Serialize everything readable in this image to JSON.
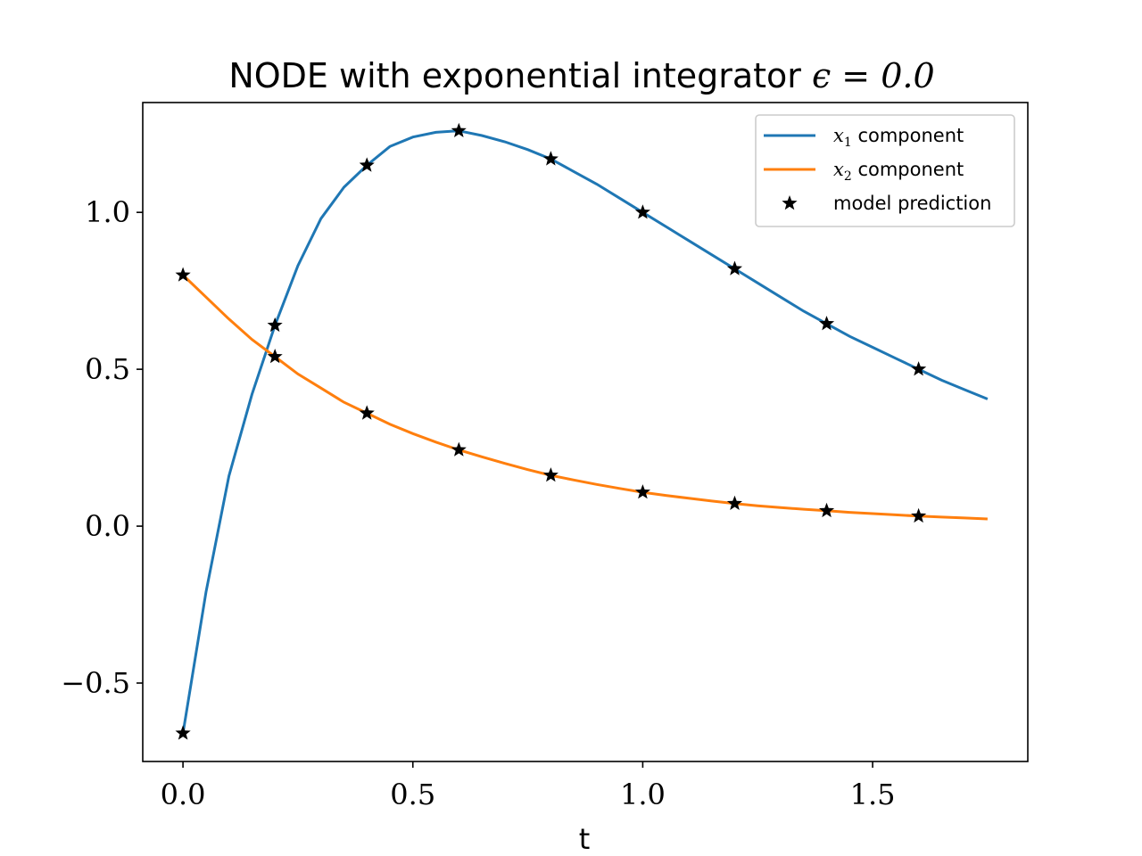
{
  "chart_data": {
    "type": "line",
    "title": "NODE with exponential integrator",
    "title_math": "ϵ = 0.0",
    "xlabel": "t",
    "ylabel": "",
    "xlim": [
      -0.0875,
      1.8375
    ],
    "ylim": [
      -0.75,
      1.35
    ],
    "grid": false,
    "legend_position": "top-right",
    "x_ticks": [
      {
        "value": 0.0,
        "label": "0.0"
      },
      {
        "value": 0.5,
        "label": "0.5"
      },
      {
        "value": 1.0,
        "label": "1.0"
      },
      {
        "value": 1.5,
        "label": "1.5"
      }
    ],
    "y_ticks": [
      {
        "value": -0.5,
        "label": "−0.5"
      },
      {
        "value": 0.0,
        "label": "0.0"
      },
      {
        "value": 0.5,
        "label": "0.5"
      },
      {
        "value": 1.0,
        "label": "1.0"
      }
    ],
    "series": [
      {
        "name": "x1 component",
        "name_math": "x",
        "name_sub": "1",
        "name_text": " component",
        "color": "#1f77b4",
        "x": [
          0.0,
          0.05,
          0.1,
          0.15,
          0.2,
          0.25,
          0.3,
          0.35,
          0.4,
          0.45,
          0.5,
          0.55,
          0.6,
          0.65,
          0.7,
          0.75,
          0.8,
          0.85,
          0.9,
          0.95,
          1.0,
          1.05,
          1.1,
          1.15,
          1.2,
          1.25,
          1.3,
          1.35,
          1.4,
          1.45,
          1.5,
          1.55,
          1.6,
          1.65,
          1.7,
          1.75
        ],
        "y": [
          -0.66,
          -0.21,
          0.16,
          0.42,
          0.64,
          0.83,
          0.98,
          1.08,
          1.15,
          1.21,
          1.24,
          1.255,
          1.26,
          1.245,
          1.225,
          1.2,
          1.17,
          1.13,
          1.09,
          1.045,
          1.0,
          0.955,
          0.91,
          0.865,
          0.82,
          0.775,
          0.73,
          0.685,
          0.645,
          0.605,
          0.57,
          0.535,
          0.5,
          0.465,
          0.435,
          0.405
        ]
      },
      {
        "name": "x2 component",
        "name_math": "x",
        "name_sub": "2",
        "name_text": " component",
        "color": "#ff7f0e",
        "x": [
          0.0,
          0.05,
          0.1,
          0.15,
          0.2,
          0.25,
          0.3,
          0.35,
          0.4,
          0.45,
          0.5,
          0.55,
          0.6,
          0.65,
          0.7,
          0.75,
          0.8,
          0.85,
          0.9,
          0.95,
          1.0,
          1.05,
          1.1,
          1.15,
          1.2,
          1.25,
          1.3,
          1.35,
          1.4,
          1.45,
          1.5,
          1.55,
          1.6,
          1.65,
          1.7,
          1.75
        ],
        "y": [
          0.8,
          0.73,
          0.66,
          0.595,
          0.54,
          0.485,
          0.44,
          0.395,
          0.36,
          0.325,
          0.295,
          0.268,
          0.243,
          0.221,
          0.2,
          0.18,
          0.162,
          0.147,
          0.133,
          0.12,
          0.108,
          0.098,
          0.089,
          0.08,
          0.072,
          0.065,
          0.059,
          0.054,
          0.049,
          0.044,
          0.04,
          0.036,
          0.032,
          0.029,
          0.026,
          0.023
        ]
      },
      {
        "name": "model prediction",
        "color": "#000000",
        "marker": "star",
        "points": [
          {
            "x": 0.0,
            "y": -0.66
          },
          {
            "x": 0.2,
            "y": 0.64
          },
          {
            "x": 0.4,
            "y": 1.15
          },
          {
            "x": 0.6,
            "y": 1.26
          },
          {
            "x": 0.8,
            "y": 1.17
          },
          {
            "x": 1.0,
            "y": 1.0
          },
          {
            "x": 1.2,
            "y": 0.82
          },
          {
            "x": 1.4,
            "y": 0.645
          },
          {
            "x": 1.6,
            "y": 0.5
          },
          {
            "x": 0.0,
            "y": 0.8
          },
          {
            "x": 0.2,
            "y": 0.54
          },
          {
            "x": 0.4,
            "y": 0.36
          },
          {
            "x": 0.6,
            "y": 0.243
          },
          {
            "x": 0.8,
            "y": 0.162
          },
          {
            "x": 1.0,
            "y": 0.108
          },
          {
            "x": 1.2,
            "y": 0.072
          },
          {
            "x": 1.4,
            "y": 0.049
          },
          {
            "x": 1.6,
            "y": 0.032
          }
        ]
      }
    ]
  }
}
